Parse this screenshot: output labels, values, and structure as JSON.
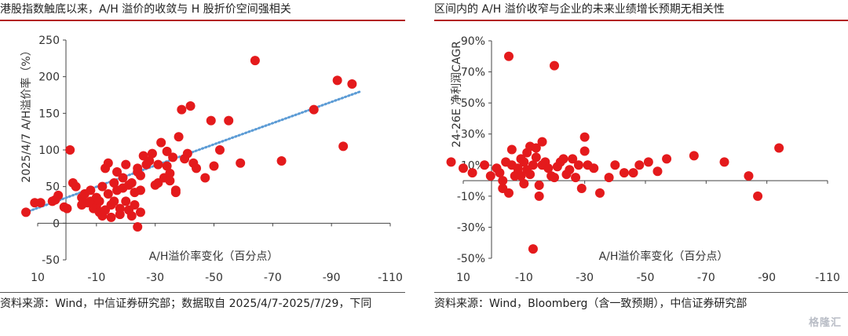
{
  "titles": {
    "left": "港股指数触底以来，A/H 溢价的收敛与 H 股折价空间强相关",
    "right": "区间内的 A/H 溢价收窄与企业的未来业绩增长预期无相关性"
  },
  "sources": {
    "left": "资料来源：Wind，中信证券研究部；数据取自 2025/4/7-2025/7/29，下同",
    "right": "资料来源：Wind，Bloomberg（含一致预期），中信证券研究部"
  },
  "watermark": "格隆汇",
  "colors": {
    "points": "#e41a1c",
    "trend": "#5b9bd5",
    "axis": "#444444"
  },
  "chart_data": [
    {
      "type": "scatter",
      "xlabel": "A/H溢价率变化（百分点）",
      "ylabel": "2025/4/7 A/H溢价率（%）",
      "xlim": [
        10,
        -110
      ],
      "ylim": [
        -50,
        250
      ],
      "xticks": [
        10,
        -10,
        -30,
        -50,
        -70,
        -90,
        -110
      ],
      "yticks": [
        -50,
        0,
        50,
        100,
        150,
        200,
        250
      ],
      "trendline": {
        "x": [
          14,
          -100
        ],
        "y": [
          15,
          180
        ]
      },
      "points": [
        [
          14,
          15
        ],
        [
          11,
          28
        ],
        [
          9,
          28
        ],
        [
          5,
          30
        ],
        [
          4,
          32
        ],
        [
          3,
          38
        ],
        [
          1,
          22
        ],
        [
          0,
          20
        ],
        [
          -1,
          100
        ],
        [
          -2,
          55
        ],
        [
          -3,
          50
        ],
        [
          -5,
          35
        ],
        [
          -5,
          25
        ],
        [
          -6,
          40
        ],
        [
          -7,
          28
        ],
        [
          -8,
          30
        ],
        [
          -8,
          45
        ],
        [
          -9,
          20
        ],
        [
          -10,
          35
        ],
        [
          -10,
          22
        ],
        [
          -11,
          15
        ],
        [
          -11,
          30
        ],
        [
          -12,
          50
        ],
        [
          -12,
          10
        ],
        [
          -13,
          75
        ],
        [
          -13,
          18
        ],
        [
          -14,
          82
        ],
        [
          -14,
          40
        ],
        [
          -15,
          25
        ],
        [
          -15,
          8
        ],
        [
          -16,
          55
        ],
        [
          -16,
          30
        ],
        [
          -17,
          70
        ],
        [
          -17,
          45
        ],
        [
          -18,
          12
        ],
        [
          -18,
          20
        ],
        [
          -19,
          62
        ],
        [
          -19,
          48
        ],
        [
          -20,
          80
        ],
        [
          -20,
          30
        ],
        [
          -21,
          52
        ],
        [
          -21,
          18
        ],
        [
          -22,
          55
        ],
        [
          -22,
          10
        ],
        [
          -23,
          42
        ],
        [
          -23,
          25
        ],
        [
          -24,
          75
        ],
        [
          -24,
          70
        ],
        [
          -24,
          -5
        ],
        [
          -25,
          65
        ],
        [
          -25,
          45
        ],
        [
          -25,
          15
        ],
        [
          -26,
          92
        ],
        [
          -27,
          80
        ],
        [
          -28,
          85
        ],
        [
          -29,
          95
        ],
        [
          -30,
          52
        ],
        [
          -31,
          55
        ],
        [
          -31,
          80
        ],
        [
          -32,
          110
        ],
        [
          -33,
          62
        ],
        [
          -34,
          78
        ],
        [
          -34,
          98
        ],
        [
          -35,
          68
        ],
        [
          -35,
          58
        ],
        [
          -36,
          90
        ],
        [
          -37,
          45
        ],
        [
          -37,
          42
        ],
        [
          -38,
          118
        ],
        [
          -39,
          155
        ],
        [
          -40,
          88
        ],
        [
          -41,
          95
        ],
        [
          -42,
          160
        ],
        [
          -43,
          82
        ],
        [
          -44,
          75
        ],
        [
          -47,
          62
        ],
        [
          -49,
          140
        ],
        [
          -50,
          78
        ],
        [
          -52,
          100
        ],
        [
          -55,
          140
        ],
        [
          -59,
          82
        ],
        [
          -64,
          222
        ],
        [
          -73,
          85
        ],
        [
          -84,
          155
        ],
        [
          -92,
          195
        ],
        [
          -94,
          105
        ],
        [
          -97,
          190
        ]
      ]
    },
    {
      "type": "scatter",
      "xlabel": "A/H溢价率变化（百分点）",
      "ylabel": "24-26E 净利润CAGR",
      "xlim": [
        10,
        -110
      ],
      "ylim": [
        -50,
        90
      ],
      "xticks": [
        10,
        -10,
        -30,
        -50,
        -70,
        -90,
        -110
      ],
      "xticklabels": [
        "10",
        "-10",
        "-30",
        "-50",
        "-70",
        "-90",
        "-110"
      ],
      "yticks": [
        -50,
        -30,
        -10,
        10,
        30,
        50,
        70,
        90
      ],
      "yticklabels": [
        "-50%",
        "-30%",
        "-10%",
        "10%",
        "30%",
        "50%",
        "70%",
        "90%"
      ],
      "points": [
        [
          14,
          12
        ],
        [
          10,
          8
        ],
        [
          7,
          5
        ],
        [
          3,
          10
        ],
        [
          1,
          3
        ],
        [
          -1,
          8
        ],
        [
          -2,
          5
        ],
        [
          -3,
          0
        ],
        [
          -3,
          -5
        ],
        [
          -4,
          12
        ],
        [
          -5,
          -8
        ],
        [
          -5,
          80
        ],
        [
          -6,
          20
        ],
        [
          -6,
          10
        ],
        [
          -7,
          3
        ],
        [
          -8,
          5
        ],
        [
          -8,
          8
        ],
        [
          -9,
          14
        ],
        [
          -9,
          3
        ],
        [
          -10,
          -2
        ],
        [
          -10,
          12
        ],
        [
          -11,
          18
        ],
        [
          -11,
          7
        ],
        [
          -12,
          22
        ],
        [
          -12,
          4
        ],
        [
          -13,
          10
        ],
        [
          -13,
          -44
        ],
        [
          -14,
          21
        ],
        [
          -14,
          15
        ],
        [
          -15,
          -3
        ],
        [
          -15,
          -10
        ],
        [
          -16,
          25
        ],
        [
          -16,
          10
        ],
        [
          -17,
          12
        ],
        [
          -18,
          8
        ],
        [
          -19,
          3
        ],
        [
          -20,
          2
        ],
        [
          -20,
          74
        ],
        [
          -21,
          9
        ],
        [
          -22,
          12
        ],
        [
          -23,
          14
        ],
        [
          -24,
          4
        ],
        [
          -25,
          7
        ],
        [
          -26,
          14
        ],
        [
          -27,
          2
        ],
        [
          -28,
          10
        ],
        [
          -29,
          -5
        ],
        [
          -30,
          28
        ],
        [
          -30,
          19
        ],
        [
          -31,
          10
        ],
        [
          -33,
          8
        ],
        [
          -35,
          -8
        ],
        [
          -38,
          2
        ],
        [
          -40,
          10
        ],
        [
          -43,
          5
        ],
        [
          -46,
          5
        ],
        [
          -48,
          10
        ],
        [
          -51,
          12
        ],
        [
          -54,
          6
        ],
        [
          -57,
          14
        ],
        [
          -66,
          16
        ],
        [
          -76,
          12
        ],
        [
          -84,
          3
        ],
        [
          -87,
          -10
        ],
        [
          -94,
          21
        ]
      ]
    }
  ]
}
